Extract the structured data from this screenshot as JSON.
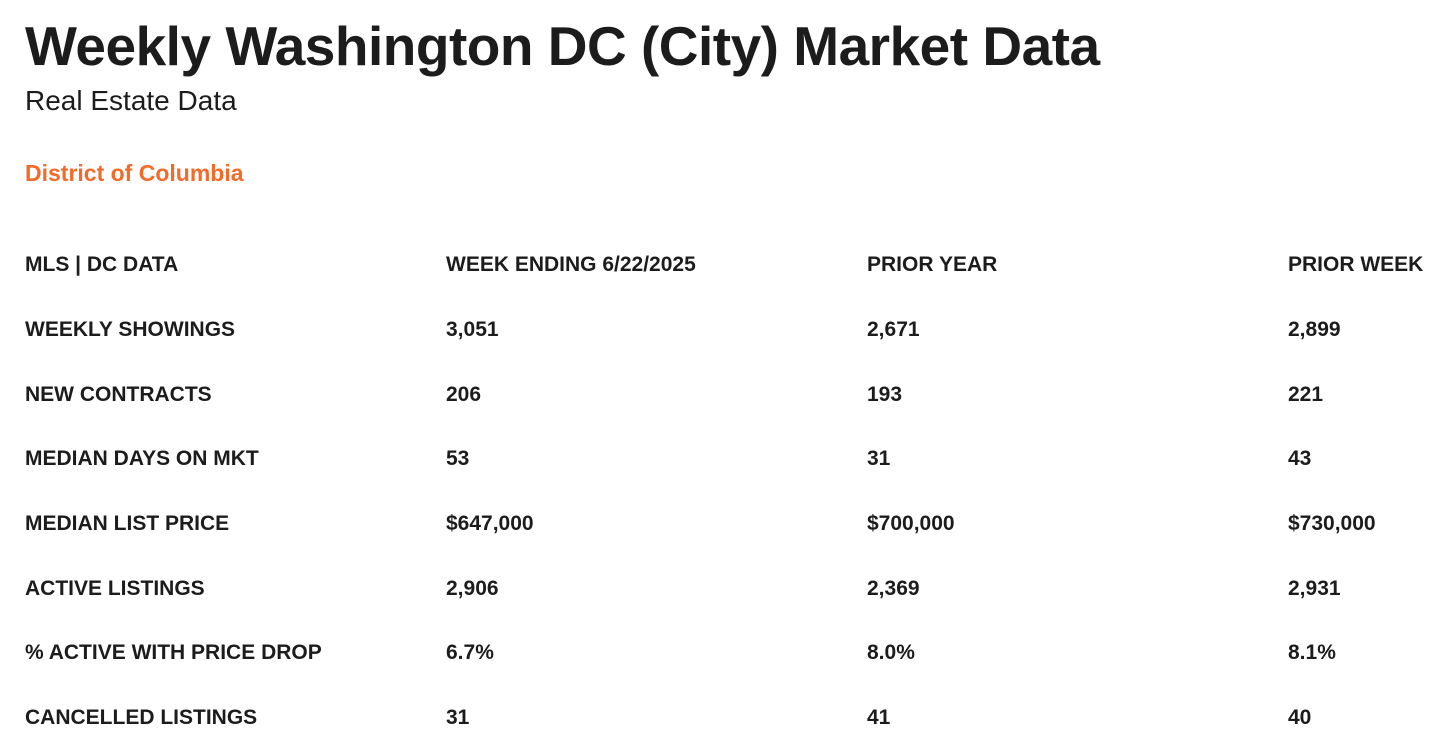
{
  "header": {
    "title": "Weekly Washington DC (City) Market Data",
    "subtitle": "Real Estate Data",
    "region": "District of Columbia",
    "region_color": "#f26b2a"
  },
  "table": {
    "columns": [
      "MLS | DC DATA",
      "WEEK ENDING 6/22/2025",
      "PRIOR YEAR",
      "PRIOR WEEK"
    ],
    "rows": [
      [
        "WEEKLY SHOWINGS",
        "3,051",
        "2,671",
        "2,899"
      ],
      [
        "NEW CONTRACTS",
        "206",
        "193",
        "221"
      ],
      [
        "MEDIAN DAYS ON MKT",
        "53",
        "31",
        "43"
      ],
      [
        "MEDIAN LIST PRICE",
        "$647,000",
        "$700,000",
        "$730,000"
      ],
      [
        "ACTIVE LISTINGS",
        "2,906",
        "2,369",
        "2,931"
      ],
      [
        "% ACTIVE WITH PRICE DROP",
        "6.7%",
        "8.0%",
        "8.1%"
      ],
      [
        "CANCELLED LISTINGS",
        "31",
        "41",
        "40"
      ]
    ]
  }
}
